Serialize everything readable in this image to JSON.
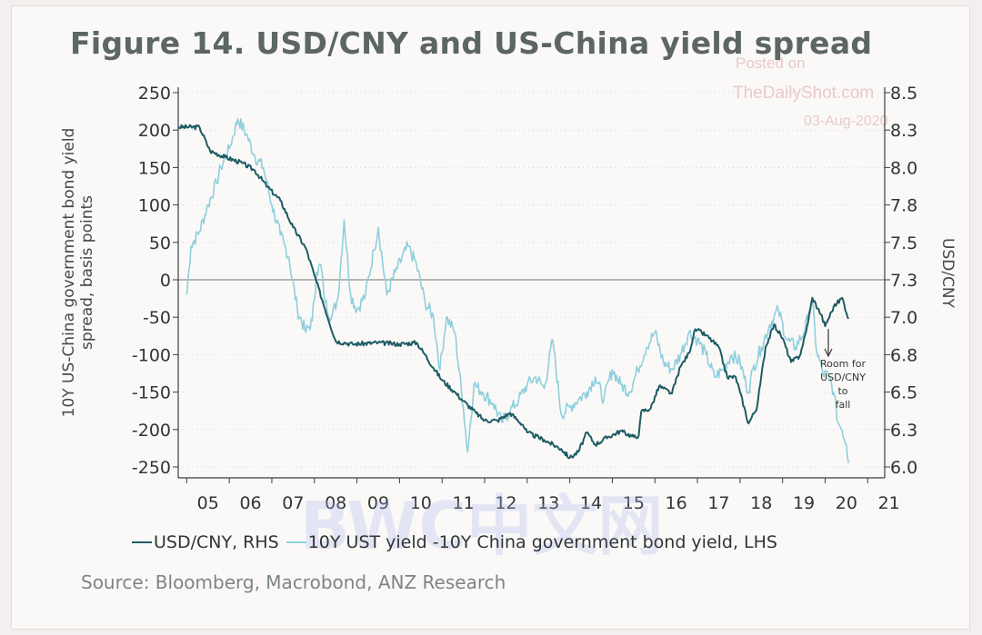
{
  "title": "Figure 14. USD/CNY and US-China yield spread",
  "watermark": [
    "Posted on",
    "TheDailyShot.com",
    "03-Aug-2020"
  ],
  "overlay_watermark": "BWC中文网",
  "source": "Source: Bloomberg, Macrobond, ANZ Research",
  "colors": {
    "usdcny": "#1d5c63",
    "spread": "#8fcfdc",
    "zero_line": "#8a8f8e"
  },
  "chart_data": {
    "type": "line",
    "xlabel": "",
    "ylabel_left": "10Y US-China government bond yield spread, basis points",
    "ylabel_right": "USD/CNY",
    "x_ticks": [
      "05",
      "06",
      "07",
      "08",
      "09",
      "10",
      "11",
      "12",
      "13",
      "14",
      "15",
      "16",
      "17",
      "18",
      "19",
      "20",
      "21"
    ],
    "y_left_ticks": [
      "250",
      "200",
      "150",
      "100",
      "50",
      "0",
      "-50",
      "-100",
      "-150",
      "-200",
      "-250"
    ],
    "y_right_ticks": [
      "8.5",
      "8.3",
      "8.0",
      "7.8",
      "7.5",
      "7.3",
      "7.0",
      "6.8",
      "6.5",
      "6.3",
      "6.0"
    ],
    "ylim_left": [
      -250,
      250
    ],
    "ylim_right": [
      6.0,
      8.5
    ],
    "xlim": [
      2004.8,
      2021.4
    ],
    "grid": "dotted horizontal",
    "annotation": [
      "Room for",
      "USD/CNY",
      "to",
      "fall"
    ],
    "series": [
      {
        "name": "USD/CNY, RHS",
        "axis": "right",
        "points": [
          [
            2004.8,
            8.27
          ],
          [
            2005.3,
            8.27
          ],
          [
            2005.55,
            8.11
          ],
          [
            2005.9,
            8.07
          ],
          [
            2006.3,
            8.03
          ],
          [
            2006.6,
            7.98
          ],
          [
            2006.9,
            7.87
          ],
          [
            2007.2,
            7.78
          ],
          [
            2007.5,
            7.6
          ],
          [
            2007.8,
            7.46
          ],
          [
            2008.0,
            7.28
          ],
          [
            2008.2,
            7.1
          ],
          [
            2008.5,
            6.84
          ],
          [
            2008.7,
            6.83
          ],
          [
            2008.9,
            6.82
          ],
          [
            2009.5,
            6.83
          ],
          [
            2010.0,
            6.82
          ],
          [
            2010.4,
            6.83
          ],
          [
            2010.6,
            6.75
          ],
          [
            2010.8,
            6.66
          ],
          [
            2011.0,
            6.58
          ],
          [
            2011.3,
            6.5
          ],
          [
            2011.5,
            6.44
          ],
          [
            2011.8,
            6.36
          ],
          [
            2012.0,
            6.31
          ],
          [
            2012.3,
            6.31
          ],
          [
            2012.6,
            6.36
          ],
          [
            2012.9,
            6.28
          ],
          [
            2013.0,
            6.23
          ],
          [
            2013.4,
            6.18
          ],
          [
            2013.8,
            6.12
          ],
          [
            2014.0,
            6.06
          ],
          [
            2014.2,
            6.1
          ],
          [
            2014.4,
            6.23
          ],
          [
            2014.6,
            6.15
          ],
          [
            2014.9,
            6.2
          ],
          [
            2015.2,
            6.24
          ],
          [
            2015.5,
            6.2
          ],
          [
            2015.62,
            6.21
          ],
          [
            2015.68,
            6.37
          ],
          [
            2015.9,
            6.39
          ],
          [
            2016.1,
            6.54
          ],
          [
            2016.4,
            6.49
          ],
          [
            2016.6,
            6.67
          ],
          [
            2016.8,
            6.76
          ],
          [
            2016.95,
            6.92
          ],
          [
            2017.2,
            6.88
          ],
          [
            2017.5,
            6.8
          ],
          [
            2017.7,
            6.6
          ],
          [
            2017.9,
            6.6
          ],
          [
            2018.0,
            6.5
          ],
          [
            2018.2,
            6.29
          ],
          [
            2018.4,
            6.4
          ],
          [
            2018.6,
            6.8
          ],
          [
            2018.8,
            6.95
          ],
          [
            2019.0,
            6.86
          ],
          [
            2019.2,
            6.7
          ],
          [
            2019.4,
            6.74
          ],
          [
            2019.55,
            6.9
          ],
          [
            2019.7,
            7.13
          ],
          [
            2019.9,
            7.02
          ],
          [
            2020.0,
            6.94
          ],
          [
            2020.2,
            7.07
          ],
          [
            2020.4,
            7.13
          ],
          [
            2020.55,
            6.99
          ]
        ]
      },
      {
        "name": "10Y UST yield -10Y China government bond yield, LHS",
        "axis": "left",
        "points": [
          [
            2005.0,
            -20
          ],
          [
            2005.1,
            45
          ],
          [
            2005.3,
            65
          ],
          [
            2005.5,
            100
          ],
          [
            2005.7,
            130
          ],
          [
            2005.8,
            150
          ],
          [
            2006.0,
            175
          ],
          [
            2006.2,
            215
          ],
          [
            2006.4,
            195
          ],
          [
            2006.6,
            165
          ],
          [
            2006.8,
            150
          ],
          [
            2007.0,
            100
          ],
          [
            2007.2,
            60
          ],
          [
            2007.4,
            30
          ],
          [
            2007.6,
            -40
          ],
          [
            2007.8,
            -70
          ],
          [
            2007.95,
            -55
          ],
          [
            2008.05,
            10
          ],
          [
            2008.15,
            20
          ],
          [
            2008.25,
            -30
          ],
          [
            2008.4,
            -50
          ],
          [
            2008.55,
            -25
          ],
          [
            2008.7,
            80
          ],
          [
            2008.85,
            -20
          ],
          [
            2009.0,
            -40
          ],
          [
            2009.2,
            -20
          ],
          [
            2009.4,
            40
          ],
          [
            2009.5,
            70
          ],
          [
            2009.7,
            -20
          ],
          [
            2009.9,
            10
          ],
          [
            2010.2,
            45
          ],
          [
            2010.4,
            20
          ],
          [
            2010.6,
            -30
          ],
          [
            2010.8,
            -50
          ],
          [
            2010.95,
            -120
          ],
          [
            2011.1,
            -50
          ],
          [
            2011.3,
            -70
          ],
          [
            2011.5,
            -170
          ],
          [
            2011.6,
            -230
          ],
          [
            2011.75,
            -140
          ],
          [
            2011.95,
            -150
          ],
          [
            2012.2,
            -165
          ],
          [
            2012.4,
            -190
          ],
          [
            2012.6,
            -175
          ],
          [
            2012.8,
            -160
          ],
          [
            2013.0,
            -140
          ],
          [
            2013.2,
            -130
          ],
          [
            2013.4,
            -145
          ],
          [
            2013.6,
            -80
          ],
          [
            2013.8,
            -180
          ],
          [
            2014.0,
            -170
          ],
          [
            2014.2,
            -160
          ],
          [
            2014.4,
            -150
          ],
          [
            2014.6,
            -130
          ],
          [
            2014.8,
            -160
          ],
          [
            2015.0,
            -120
          ],
          [
            2015.2,
            -140
          ],
          [
            2015.4,
            -150
          ],
          [
            2015.6,
            -120
          ],
          [
            2015.8,
            -90
          ],
          [
            2016.0,
            -70
          ],
          [
            2016.2,
            -110
          ],
          [
            2016.4,
            -120
          ],
          [
            2016.6,
            -100
          ],
          [
            2016.8,
            -70
          ],
          [
            2017.0,
            -80
          ],
          [
            2017.2,
            -100
          ],
          [
            2017.4,
            -130
          ],
          [
            2017.6,
            -120
          ],
          [
            2017.8,
            -100
          ],
          [
            2018.0,
            -110
          ],
          [
            2018.2,
            -150
          ],
          [
            2018.3,
            -120
          ],
          [
            2018.5,
            -90
          ],
          [
            2018.7,
            -60
          ],
          [
            2018.9,
            -40
          ],
          [
            2019.1,
            -80
          ],
          [
            2019.3,
            -90
          ],
          [
            2019.5,
            -70
          ],
          [
            2019.7,
            -30
          ],
          [
            2019.8,
            -95
          ],
          [
            2019.95,
            -125
          ],
          [
            2020.1,
            -130
          ],
          [
            2020.2,
            -150
          ],
          [
            2020.3,
            -190
          ],
          [
            2020.4,
            -200
          ],
          [
            2020.5,
            -220
          ],
          [
            2020.55,
            -245
          ]
        ]
      }
    ]
  }
}
